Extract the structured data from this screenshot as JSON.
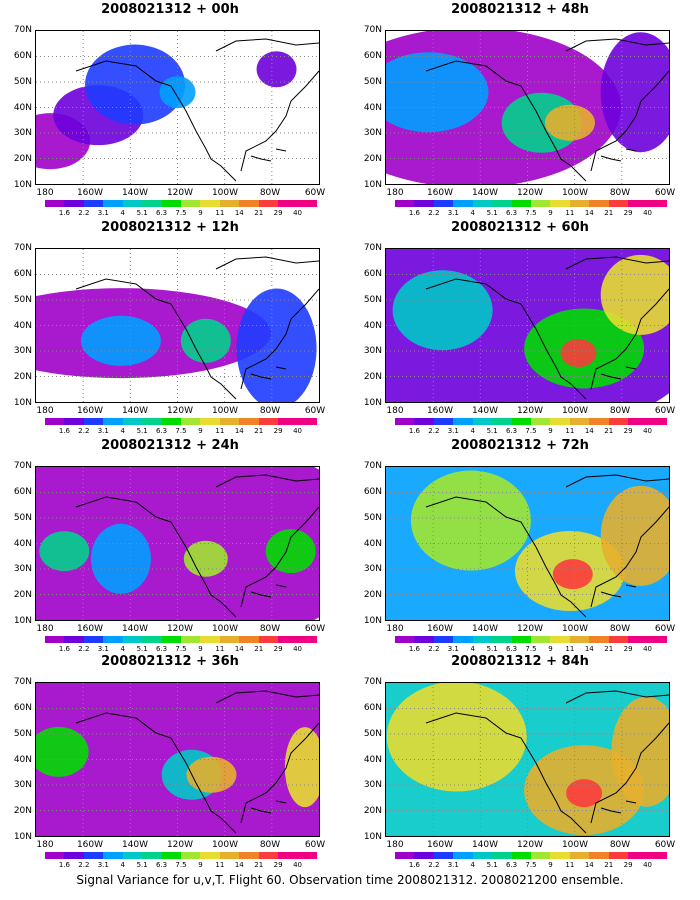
{
  "caption": "Signal Variance for u,v,T. Flight 60. Observation time 2008021312. 2008021200 ensemble.",
  "lat_labels": [
    "70N",
    "60N",
    "50N",
    "40N",
    "30N",
    "20N",
    "10N"
  ],
  "lon_labels": [
    "180",
    "160W",
    "140W",
    "120W",
    "100W",
    "80W",
    "60W"
  ],
  "colorbar": {
    "levels": [
      "1.6",
      "2.2",
      "3.1",
      "4",
      "5.1",
      "6.3",
      "7.5",
      "9",
      "11",
      "14",
      "21",
      "29",
      "40"
    ],
    "colors": [
      "#a000c8",
      "#6e00dc",
      "#1e3cff",
      "#00a0ff",
      "#00c8c8",
      "#00d28c",
      "#00dc00",
      "#a0e632",
      "#e6dc32",
      "#e6af2d",
      "#f08228",
      "#fa3c3c",
      "#f00082"
    ]
  },
  "panels": [
    {
      "title": "2008021312 + 00h"
    },
    {
      "title": "2008021312 + 48h"
    },
    {
      "title": "2008021312 + 12h"
    },
    {
      "title": "2008021312 + 60h"
    },
    {
      "title": "2008021312 + 24h"
    },
    {
      "title": "2008021312 + 72h"
    },
    {
      "title": "2008021312 + 36h"
    },
    {
      "title": "2008021312 + 84h"
    }
  ]
}
